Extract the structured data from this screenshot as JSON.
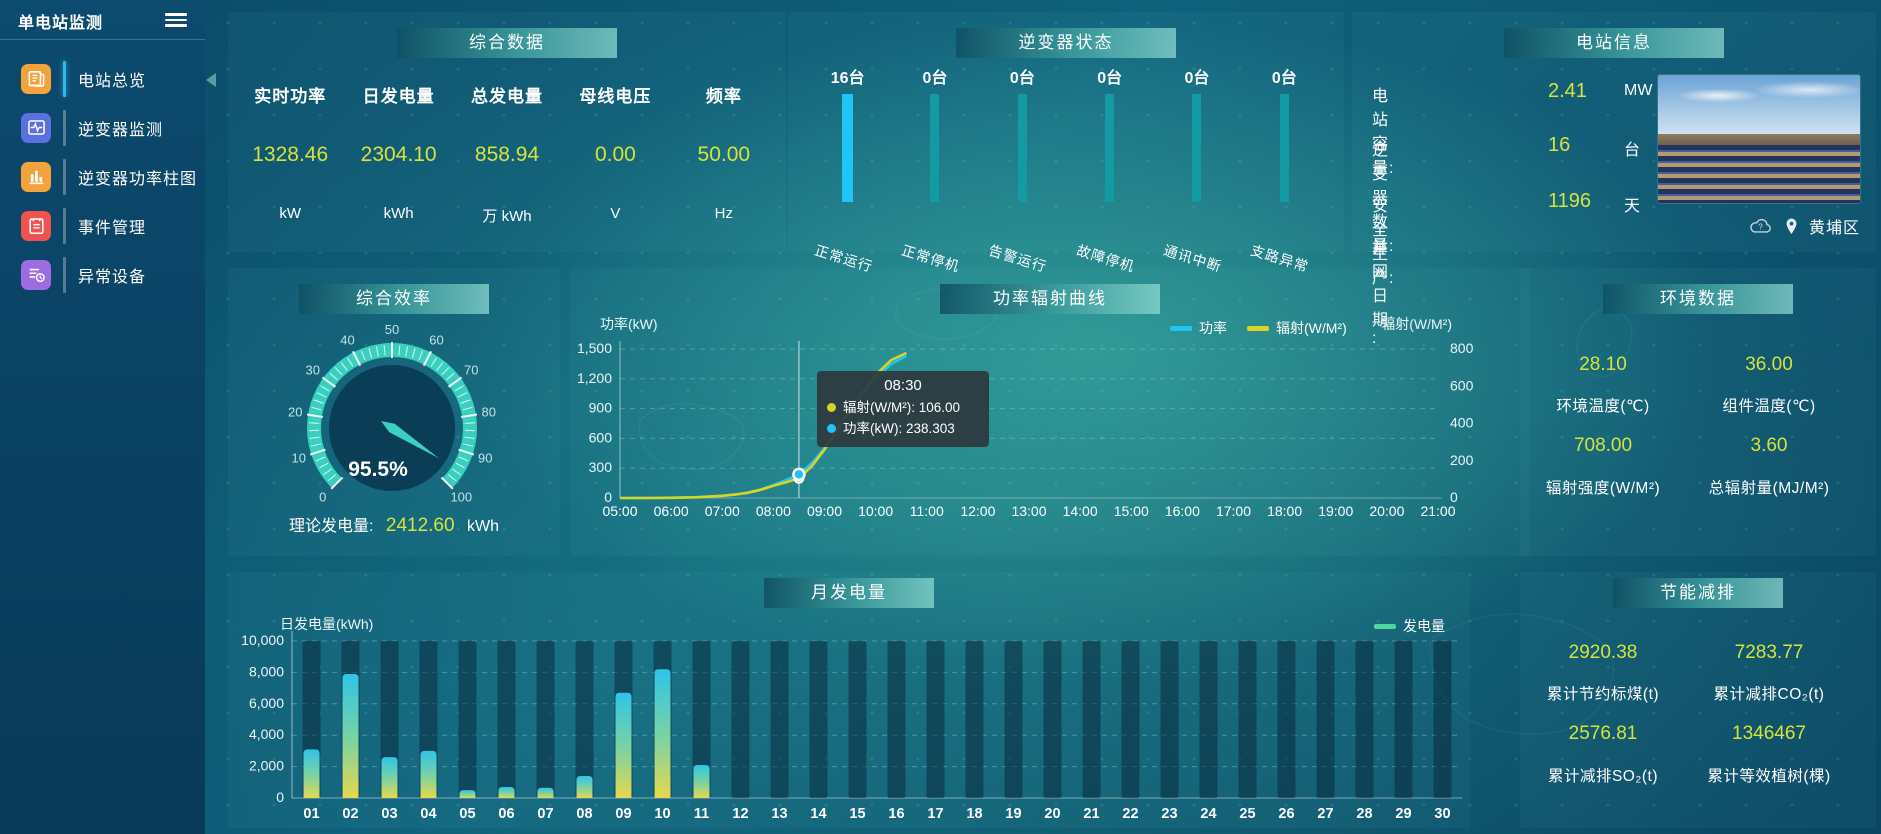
{
  "app": {
    "title": "单电站监测"
  },
  "sidebar": {
    "menu": [
      {
        "label": "电站总览",
        "icon": "station-overview-icon",
        "icon_color": "#f2a33c",
        "active": true
      },
      {
        "label": "逆变器监测",
        "icon": "inverter-monitor-icon",
        "icon_color": "#5a70e0",
        "active": false
      },
      {
        "label": "逆变器功率柱图",
        "icon": "inverter-power-chart-icon",
        "icon_color": "#f2a33c",
        "active": false
      },
      {
        "label": "事件管理",
        "icon": "event-management-icon",
        "icon_color": "#ef5350",
        "active": false
      },
      {
        "label": "异常设备",
        "icon": "abnormal-device-icon",
        "icon_color": "#9c6ce0",
        "active": false
      }
    ]
  },
  "summary_panel": {
    "title": "综合数据",
    "metrics": [
      {
        "label": "实时功率",
        "value": "1328.46",
        "unit": "kW"
      },
      {
        "label": "日发电量",
        "value": "2304.10",
        "unit": "kWh"
      },
      {
        "label": "总发电量",
        "value": "858.94",
        "unit": "万 kWh"
      },
      {
        "label": "母线电压",
        "value": "0.00",
        "unit": "V"
      },
      {
        "label": "频率",
        "value": "50.00",
        "unit": "Hz"
      }
    ]
  },
  "inverter_panel": {
    "title": "逆变器状态",
    "states": [
      {
        "count": "16台",
        "label": "正常运行",
        "active": true
      },
      {
        "count": "0台",
        "label": "正常停机",
        "active": false
      },
      {
        "count": "0台",
        "label": "告警运行",
        "active": false
      },
      {
        "count": "0台",
        "label": "故障停机",
        "active": false
      },
      {
        "count": "0台",
        "label": "通讯中断",
        "active": false
      },
      {
        "count": "0台",
        "label": "支路异常",
        "active": false
      }
    ]
  },
  "station_panel": {
    "title": "电站信息",
    "rows": [
      {
        "label": "电站容量:",
        "value": "2.41",
        "unit": "MW"
      },
      {
        "label": "逆变器数量:",
        "value": "16",
        "unit": "台"
      },
      {
        "label": "安全生产:",
        "value": "1196",
        "unit": "天"
      },
      {
        "label": "并网日期:  :",
        "value": "",
        "unit": ""
      }
    ],
    "location": "黄埔区"
  },
  "efficiency_panel": {
    "title": "综合效率",
    "percent_text": "95.5%",
    "theory_label": "理论发电量:",
    "theory_value": "2412.60",
    "theory_unit": "kWh"
  },
  "curve_panel": {
    "title": "功率辐射曲线"
  },
  "environment_panel": {
    "title": "环境数据",
    "metrics": [
      {
        "value": "28.10",
        "label": "环境温度(℃)"
      },
      {
        "value": "36.00",
        "label": "组件温度(℃)"
      },
      {
        "value": "708.00",
        "label": "辐射强度(W/M²)"
      },
      {
        "value": "3.60",
        "label": "总辐射量(MJ/M²)"
      }
    ]
  },
  "monthly_panel": {
    "title": "月发电量"
  },
  "saving_panel": {
    "title": "节能减排",
    "metrics": [
      {
        "value": "2920.38",
        "label": "累计节约标煤(t)"
      },
      {
        "value": "7283.77",
        "label": "累计减排CO₂(t)"
      },
      {
        "value": "2576.81",
        "label": "累计减排SO₂(t)"
      },
      {
        "value": "1346467",
        "label": "累计等效植树(棵)"
      }
    ]
  },
  "chart_data": [
    {
      "type": "bar",
      "name": "inverter_status",
      "title": "逆变器状态",
      "categories": [
        "正常运行",
        "正常停机",
        "告警运行",
        "故障停机",
        "通讯中断",
        "支路异常"
      ],
      "values": [
        16,
        0,
        0,
        0,
        0,
        0
      ],
      "unit": "台",
      "colors": {
        "active": "#1fc6f5",
        "inactive": "#149aa2"
      },
      "note": "all bars drawn equal height, color marks the non-zero state"
    },
    {
      "type": "gauge",
      "name": "efficiency",
      "title": "综合效率",
      "value": 95.5,
      "display": "95.5%",
      "min": 0,
      "max": 100,
      "tick_labels": [
        "0",
        "10",
        "20",
        "30",
        "40",
        "50",
        "60",
        "70",
        "80",
        "90",
        "100"
      ],
      "arc_color": "#3ad0bf"
    },
    {
      "type": "line",
      "name": "power_radiation",
      "title": "功率辐射曲线",
      "x_labels": [
        "05:00",
        "06:00",
        "07:00",
        "08:00",
        "09:00",
        "10:00",
        "11:00",
        "12:00",
        "13:00",
        "14:00",
        "15:00",
        "16:00",
        "17:00",
        "18:00",
        "19:00",
        "20:00",
        "21:00"
      ],
      "x_range": [
        5,
        21
      ],
      "left_axis": {
        "label": "功率(kW)",
        "ticks": [
          "1,500",
          "1,200",
          "900",
          "600",
          "300",
          "0"
        ],
        "max": 1500
      },
      "right_axis": {
        "label": "辐射(W/M²)",
        "ticks": [
          "800",
          "600",
          "400",
          "200",
          "0"
        ],
        "max": 800
      },
      "legend": [
        {
          "name": "功率",
          "color": "#1fc6f5"
        },
        {
          "name": "辐射(W/M²)",
          "color": "#d9d323"
        }
      ],
      "series": [
        {
          "name": "功率",
          "axis": "left",
          "color": "#1fc6f5",
          "x": [
            5,
            5.5,
            6,
            6.5,
            7,
            7.25,
            7.5,
            7.75,
            8,
            8.25,
            8.5,
            8.75,
            9,
            9.5,
            10,
            10.3,
            10.6
          ],
          "values": [
            0,
            1,
            3,
            8,
            22,
            35,
            55,
            85,
            130,
            180,
            238.3,
            350,
            500,
            850,
            1200,
            1350,
            1430
          ]
        },
        {
          "name": "辐射(W/M²)",
          "axis": "right",
          "color": "#d9d323",
          "x": [
            5,
            5.5,
            6,
            6.5,
            7,
            7.25,
            7.5,
            7.75,
            8,
            8.25,
            8.5,
            8.75,
            9,
            9.5,
            10,
            10.3,
            10.6
          ],
          "values": [
            0,
            0,
            1,
            4,
            12,
            18,
            28,
            44,
            66,
            85,
            106,
            170,
            260,
            480,
            660,
            740,
            778
          ]
        }
      ],
      "tooltip": {
        "time": "08:30",
        "crosshair_x": 8.5,
        "rows": [
          {
            "label": "辐射(W/M²)",
            "value": "106.00",
            "color": "#d9d323"
          },
          {
            "label": "功率(kW)",
            "value": "238.303",
            "color": "#1fc6f5"
          }
        ]
      }
    },
    {
      "type": "bar",
      "name": "monthly_generation",
      "title": "月发电量",
      "ylabel": "日发电量(kWh)",
      "yticks": [
        "10,000",
        "8,000",
        "6,000",
        "4,000",
        "2,000",
        "0"
      ],
      "ymax": 10000,
      "legend": [
        {
          "name": "发电量",
          "color": "#4cd79e"
        }
      ],
      "categories": [
        "01",
        "02",
        "03",
        "04",
        "05",
        "06",
        "07",
        "08",
        "09",
        "10",
        "11",
        "12",
        "13",
        "14",
        "15",
        "16",
        "17",
        "18",
        "19",
        "20",
        "21",
        "22",
        "23",
        "24",
        "25",
        "26",
        "27",
        "28",
        "29",
        "30"
      ],
      "values": [
        3100,
        7900,
        2600,
        3000,
        500,
        700,
        650,
        1400,
        6700,
        8200,
        2100,
        0,
        0,
        0,
        0,
        0,
        0,
        0,
        0,
        0,
        0,
        0,
        0,
        0,
        0,
        0,
        0,
        0,
        0,
        0
      ]
    }
  ]
}
